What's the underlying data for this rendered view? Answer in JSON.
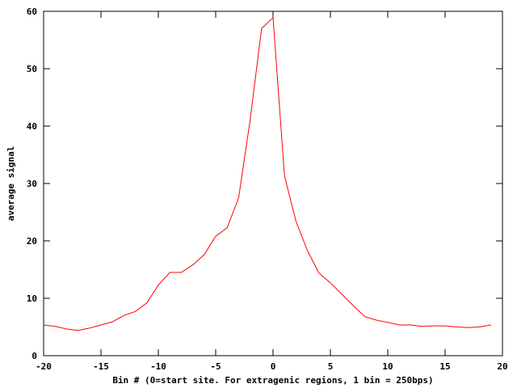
{
  "chart_data": {
    "type": "line",
    "x_label": "Bin # (0=start site. For extragenic regions, 1 bin = 250bps)",
    "y_label": "average signal",
    "x": [
      -20,
      -19,
      -18,
      -17,
      -16,
      -15,
      -14,
      -13,
      -12,
      -11,
      -10,
      -9,
      -8,
      -7,
      -6,
      -5,
      -4,
      -3,
      -2,
      -1,
      0,
      1,
      2,
      3,
      4,
      5,
      6,
      7,
      8,
      9,
      10,
      11,
      12,
      13,
      14,
      15,
      16,
      17,
      18,
      19
    ],
    "series": [
      {
        "color": "#ff0000",
        "values": [
          5.35,
          5.1,
          4.65,
          4.4,
          4.8,
          5.35,
          5.9,
          7.0,
          7.7,
          9.2,
          12.3,
          14.5,
          14.5,
          15.8,
          17.6,
          20.8,
          22.3,
          27.5,
          41,
          57,
          58.9,
          31.3,
          23.4,
          18.3,
          14.4,
          12.7,
          10.7,
          8.7,
          6.8,
          6.2,
          5.8,
          5.35,
          5.35,
          5.1,
          5.2,
          5.2,
          5.0,
          4.9,
          5.0,
          5.35
        ]
      }
    ],
    "xlim": [
      -20,
      20
    ],
    "xticks": [
      -20,
      -15,
      -10,
      -5,
      0,
      5,
      10,
      15,
      20
    ],
    "ylim": [
      0,
      60
    ],
    "yticks": [
      0,
      10,
      20,
      30,
      40,
      50,
      60
    ],
    "grid": false
  }
}
